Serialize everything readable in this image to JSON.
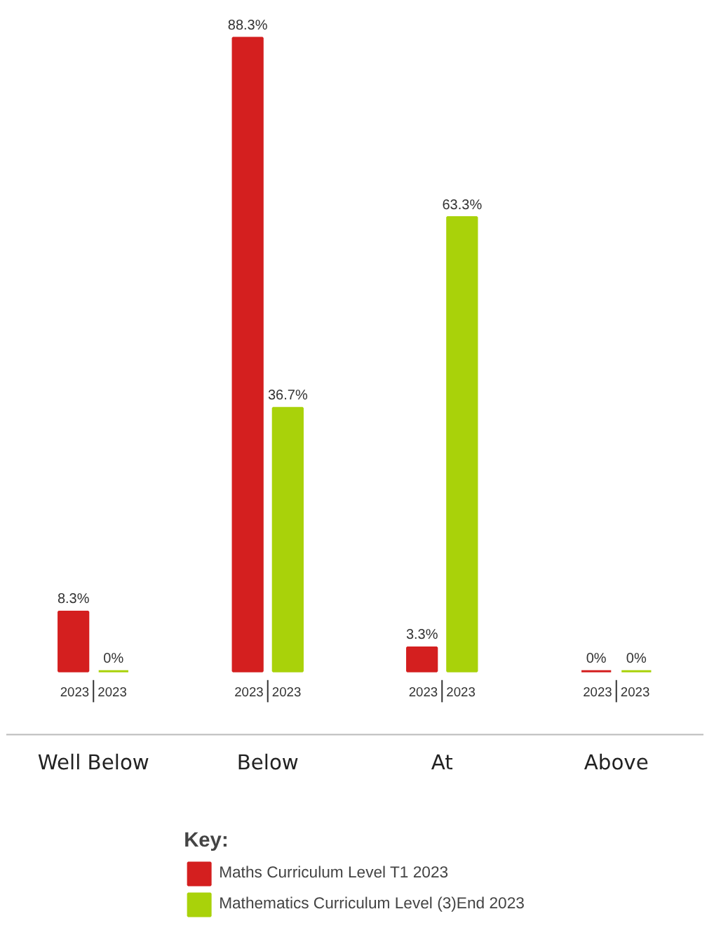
{
  "chart_data": {
    "type": "bar",
    "legend_title": "Key:",
    "categories": [
      "Well Below",
      "Below",
      "At",
      "Above"
    ],
    "series": [
      {
        "name": "Maths Curriculum Level T1 2023",
        "color": "#d41f1f",
        "values": [
          8.3,
          88.3,
          3.3,
          0
        ],
        "value_labels": [
          "8.3%",
          "88.3%",
          "3.3%",
          "0%"
        ]
      },
      {
        "name": "Mathematics Curriculum Level (3)End 2023",
        "color": "#a9d20a",
        "values": [
          0,
          36.7,
          63.3,
          0
        ],
        "value_labels": [
          "0%",
          "36.7%",
          "63.3%",
          "0%"
        ]
      }
    ],
    "annotations": [
      "2023",
      "2023",
      "2023",
      "2023",
      "2023",
      "2023",
      "2023",
      "2023"
    ],
    "legend": "bottom"
  }
}
